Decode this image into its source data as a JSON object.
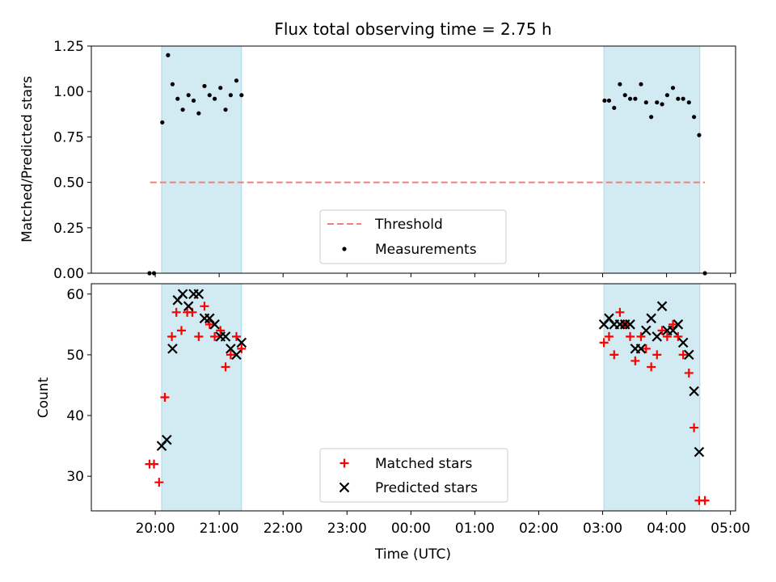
{
  "figure": {
    "title": "Flux total observing time = 2.75 h",
    "xlabel": "Time (UTC)"
  },
  "colors": {
    "shade": "#add8e6",
    "threshold": "#f08080",
    "matched": "#ff0000",
    "predicted": "#000000",
    "measure": "#000000"
  },
  "chart_data": [
    {
      "type": "scatter",
      "ylabel": "Matched/Predicted stars",
      "x_unit": "hours since 19:30 UTC",
      "xlim": [
        -0.5,
        9.58
      ],
      "ylim": [
        0,
        1.25
      ],
      "yticks": [
        0,
        0.25,
        0.5,
        0.75,
        1.0,
        1.25
      ],
      "ytick_labels": [
        "0.00",
        "0.25",
        "0.50",
        "0.75",
        "1.00",
        "1.25"
      ],
      "shaded_spans": [
        [
          0.6,
          1.85
        ],
        [
          7.52,
          9.02
        ]
      ],
      "threshold": {
        "y": 0.5,
        "x_range": [
          0.42,
          9.1
        ],
        "label": "Threshold"
      },
      "series": [
        {
          "name": "Measurements",
          "marker": "dot",
          "points": [
            [
              0.41,
              0
            ],
            [
              0.48,
              0
            ],
            [
              0.61,
              0.83
            ],
            [
              0.7,
              1.2
            ],
            [
              0.77,
              1.04
            ],
            [
              0.85,
              0.96
            ],
            [
              0.93,
              0.9
            ],
            [
              1.02,
              0.98
            ],
            [
              1.1,
              0.95
            ],
            [
              1.18,
              0.88
            ],
            [
              1.27,
              1.03
            ],
            [
              1.35,
              0.98
            ],
            [
              1.43,
              0.96
            ],
            [
              1.52,
              1.02
            ],
            [
              1.6,
              0.9
            ],
            [
              1.68,
              0.98
            ],
            [
              1.77,
              1.06
            ],
            [
              1.85,
              0.98
            ],
            [
              7.53,
              0.95
            ],
            [
              7.6,
              0.95
            ],
            [
              7.68,
              0.91
            ],
            [
              7.77,
              1.04
            ],
            [
              7.85,
              0.98
            ],
            [
              7.93,
              0.96
            ],
            [
              8.01,
              0.96
            ],
            [
              8.1,
              1.04
            ],
            [
              8.18,
              0.94
            ],
            [
              8.26,
              0.86
            ],
            [
              8.35,
              0.94
            ],
            [
              8.43,
              0.93
            ],
            [
              8.51,
              0.98
            ],
            [
              8.6,
              1.02
            ],
            [
              8.68,
              0.96
            ],
            [
              8.76,
              0.96
            ],
            [
              8.85,
              0.94
            ],
            [
              8.93,
              0.86
            ],
            [
              9.01,
              0.76
            ],
            [
              9.1,
              0
            ]
          ]
        }
      ],
      "legend": {
        "position": "lower center",
        "entries": [
          "Threshold",
          "Measurements"
        ]
      }
    },
    {
      "type": "scatter",
      "ylabel": "Count",
      "x_unit": "hours since 19:30 UTC",
      "xlim": [
        -0.5,
        9.58
      ],
      "ylim": [
        24.3,
        61.7
      ],
      "yticks": [
        30,
        40,
        50,
        60
      ],
      "ytick_labels": [
        "30",
        "40",
        "50",
        "60"
      ],
      "shaded_spans": [
        [
          0.6,
          1.85
        ],
        [
          7.52,
          9.02
        ]
      ],
      "xticks": [
        0.5,
        1.5,
        2.5,
        3.5,
        4.5,
        5.5,
        6.5,
        7.5,
        8.5,
        9.5
      ],
      "xtick_labels": [
        "20:00",
        "21:00",
        "22:00",
        "23:00",
        "00:00",
        "01:00",
        "02:00",
        "03:00",
        "04:00",
        "05:00"
      ],
      "series": [
        {
          "name": "Matched stars",
          "marker": "plus",
          "points": [
            [
              0.41,
              32
            ],
            [
              0.48,
              32
            ],
            [
              0.56,
              29
            ],
            [
              0.65,
              43
            ],
            [
              0.76,
              53
            ],
            [
              0.83,
              57
            ],
            [
              0.91,
              54
            ],
            [
              1.0,
              57
            ],
            [
              1.08,
              57
            ],
            [
              1.18,
              53
            ],
            [
              1.27,
              58
            ],
            [
              1.35,
              55
            ],
            [
              1.43,
              53
            ],
            [
              1.52,
              54
            ],
            [
              1.6,
              48
            ],
            [
              1.68,
              50
            ],
            [
              1.77,
              53
            ],
            [
              1.85,
              51
            ],
            [
              7.52,
              52
            ],
            [
              7.6,
              53
            ],
            [
              7.68,
              50
            ],
            [
              7.77,
              57
            ],
            [
              7.85,
              55
            ],
            [
              7.93,
              53
            ],
            [
              8.01,
              49
            ],
            [
              8.1,
              53
            ],
            [
              8.18,
              51
            ],
            [
              8.26,
              48
            ],
            [
              8.35,
              50
            ],
            [
              8.43,
              54
            ],
            [
              8.51,
              53
            ],
            [
              8.6,
              55
            ],
            [
              8.68,
              53
            ],
            [
              8.76,
              50
            ],
            [
              8.85,
              47
            ],
            [
              8.93,
              38
            ],
            [
              9.01,
              26
            ],
            [
              9.1,
              26
            ]
          ]
        },
        {
          "name": "Predicted stars",
          "marker": "x",
          "points": [
            [
              0.6,
              35
            ],
            [
              0.68,
              36
            ],
            [
              0.77,
              51
            ],
            [
              0.85,
              59
            ],
            [
              0.93,
              60
            ],
            [
              1.02,
              58
            ],
            [
              1.1,
              60
            ],
            [
              1.18,
              60
            ],
            [
              1.27,
              56
            ],
            [
              1.35,
              56
            ],
            [
              1.43,
              55
            ],
            [
              1.52,
              53
            ],
            [
              1.6,
              53
            ],
            [
              1.68,
              51
            ],
            [
              1.77,
              50
            ],
            [
              1.85,
              52
            ],
            [
              7.52,
              55
            ],
            [
              7.6,
              56
            ],
            [
              7.68,
              55
            ],
            [
              7.77,
              55
            ],
            [
              7.85,
              55
            ],
            [
              7.93,
              55
            ],
            [
              8.01,
              51
            ],
            [
              8.1,
              51
            ],
            [
              8.18,
              54
            ],
            [
              8.26,
              56
            ],
            [
              8.35,
              53
            ],
            [
              8.43,
              58
            ],
            [
              8.51,
              54
            ],
            [
              8.6,
              54
            ],
            [
              8.68,
              55
            ],
            [
              8.76,
              52
            ],
            [
              8.85,
              50
            ],
            [
              8.93,
              44
            ],
            [
              9.01,
              34
            ]
          ]
        }
      ],
      "legend": {
        "position": "lower center",
        "entries": [
          "Matched stars",
          "Predicted stars"
        ]
      }
    }
  ]
}
